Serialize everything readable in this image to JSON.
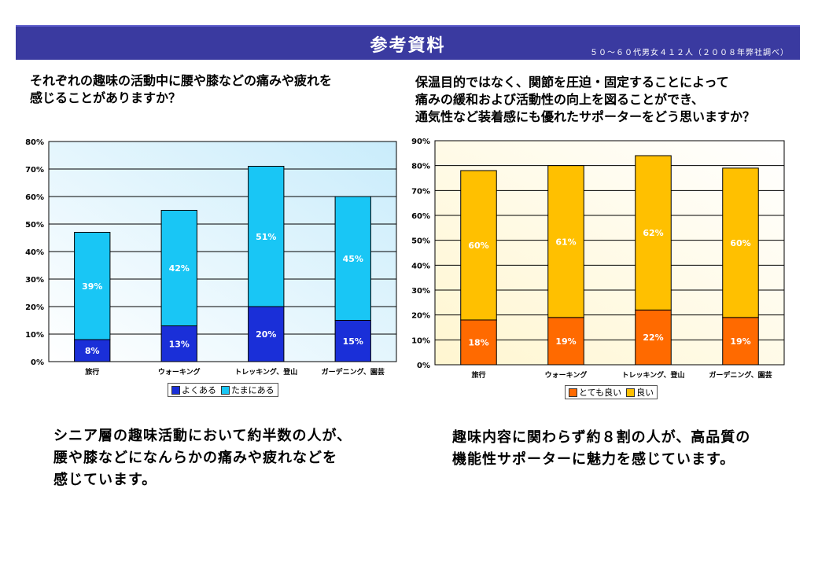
{
  "header": {
    "title": "参考資料",
    "note": "５０～６０代男女４１２人（２００８年弊社調べ）"
  },
  "questions": {
    "left": [
      "それぞれの趣味の活動中に腰や膝などの痛みや疲れを",
      "感じることがありますか？"
    ],
    "right": [
      "保温目的ではなく、関節を圧迫・固定することによって",
      "痛みの緩和および活動性の向上を図ることができ、",
      "通気性など装着感にも優れたサポーターをどう思いますか？"
    ]
  },
  "conclusions": {
    "left": [
      "シニア層の趣味活動において約半数の人が、",
      "腰や膝などになんらかの痛みや疲れなどを",
      "感じています。"
    ],
    "right": [
      "趣味内容に関わらず約８割の人が、高品質の",
      "機能性サポーターに魅力を感じています。"
    ]
  },
  "chart_data": [
    {
      "type": "bar",
      "stacked": true,
      "categories": [
        "旅行",
        "ウォーキング",
        "トレッキング、登山",
        "ガーデニング、園芸"
      ],
      "series": [
        {
          "name": "よくある",
          "values": [
            8,
            13,
            20,
            15
          ],
          "labels": [
            "8%",
            "13%",
            "20%",
            "15%"
          ],
          "color": "#1a2fd8"
        },
        {
          "name": "たまにある",
          "values": [
            39,
            42,
            51,
            45
          ],
          "labels": [
            "39%",
            "42%",
            "51%",
            "45%"
          ],
          "color": "#19c6f5"
        }
      ],
      "ylim": [
        0,
        80
      ],
      "yticks": [
        "0%",
        "10%",
        "20%",
        "30%",
        "40%",
        "50%",
        "60%",
        "70%",
        "80%"
      ],
      "grid": true,
      "legend": "bottom",
      "background": "light-blue-gradient"
    },
    {
      "type": "bar",
      "stacked": true,
      "categories": [
        "旅行",
        "ウォーキング",
        "トレッキング、登山",
        "ガーデニング、園芸"
      ],
      "series": [
        {
          "name": "とても良い",
          "values": [
            18,
            19,
            22,
            19
          ],
          "labels": [
            "18%",
            "19%",
            "22%",
            "19%"
          ],
          "color": "#ff6a00"
        },
        {
          "name": "良い",
          "values": [
            60,
            61,
            62,
            60
          ],
          "labels": [
            "60%",
            "61%",
            "62%",
            "60%"
          ],
          "color": "#ffc000"
        }
      ],
      "ylim": [
        0,
        90
      ],
      "yticks": [
        "0%",
        "10%",
        "20%",
        "30%",
        "40%",
        "50%",
        "60%",
        "70%",
        "80%",
        "90%"
      ],
      "grid": true,
      "legend": "bottom",
      "background": "light-yellow-gradient"
    }
  ]
}
